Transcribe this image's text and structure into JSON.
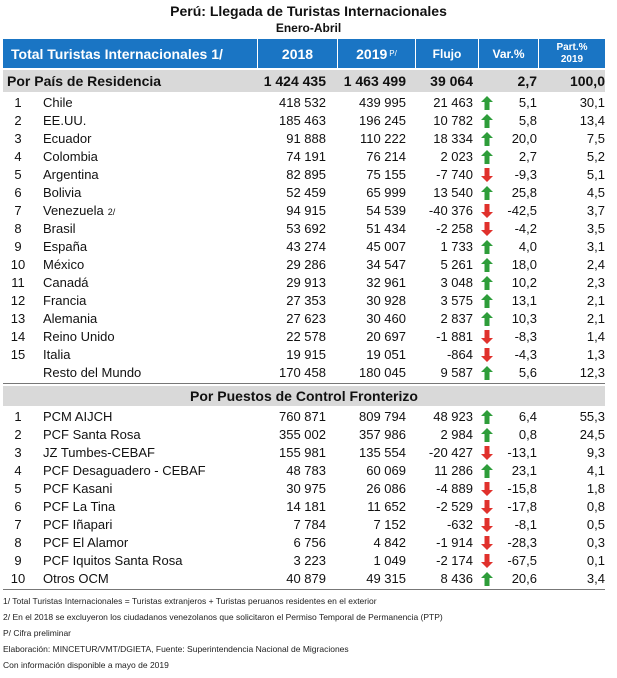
{
  "title": "Perú: Llegada de Turistas Internacionales",
  "subtitle": "Enero-Abril",
  "header": {
    "total": "Total Turistas Internacionales 1/",
    "y2018": "2018",
    "y2019": "2019",
    "y2019_note": "P/",
    "flujo": "Flujo",
    "var": "Var.%",
    "part_line1": "Part.%",
    "part_line2": "2019"
  },
  "colors": {
    "header_bg": "#1a75c4",
    "section_bg": "#d9d9d9",
    "arrow_up": "#2e9d3a",
    "arrow_down": "#e0312c"
  },
  "chart_data": {
    "type": "table",
    "title": "Perú: Llegada de Turistas Internacionales",
    "columns": [
      "Total Turistas Internacionales 1/",
      "2018",
      "2019 P/",
      "Flujo",
      "Var.%",
      "Part.% 2019"
    ],
    "sections": [
      {
        "label": "Por País de Residencia",
        "totals": {
          "y2018": "1 424 435",
          "y2019": "1 463 499",
          "flujo": "39 064",
          "var": "2,7",
          "part": "100,0"
        },
        "rows": [
          {
            "rank": "1",
            "name": "Chile",
            "note": "",
            "y2018": "418 532",
            "y2019": "439 995",
            "flujo": "21 463",
            "dir": "up",
            "var": "5,1",
            "part": "30,1"
          },
          {
            "rank": "2",
            "name": "EE.UU.",
            "note": "",
            "y2018": "185 463",
            "y2019": "196 245",
            "flujo": "10 782",
            "dir": "up",
            "var": "5,8",
            "part": "13,4"
          },
          {
            "rank": "3",
            "name": "Ecuador",
            "note": "",
            "y2018": "91 888",
            "y2019": "110 222",
            "flujo": "18 334",
            "dir": "up",
            "var": "20,0",
            "part": "7,5"
          },
          {
            "rank": "4",
            "name": "Colombia",
            "note": "",
            "y2018": "74 191",
            "y2019": "76 214",
            "flujo": "2 023",
            "dir": "up",
            "var": "2,7",
            "part": "5,2"
          },
          {
            "rank": "5",
            "name": "Argentina",
            "note": "",
            "y2018": "82 895",
            "y2019": "75 155",
            "flujo": "-7 740",
            "dir": "down",
            "var": "-9,3",
            "part": "5,1"
          },
          {
            "rank": "6",
            "name": "Bolivia",
            "note": "",
            "y2018": "52 459",
            "y2019": "65 999",
            "flujo": "13 540",
            "dir": "up",
            "var": "25,8",
            "part": "4,5"
          },
          {
            "rank": "7",
            "name": "Venezuela",
            "note": "2/",
            "y2018": "94 915",
            "y2019": "54 539",
            "flujo": "-40 376",
            "dir": "down",
            "var": "-42,5",
            "part": "3,7"
          },
          {
            "rank": "8",
            "name": "Brasil",
            "note": "",
            "y2018": "53 692",
            "y2019": "51 434",
            "flujo": "-2 258",
            "dir": "down",
            "var": "-4,2",
            "part": "3,5"
          },
          {
            "rank": "9",
            "name": "España",
            "note": "",
            "y2018": "43 274",
            "y2019": "45 007",
            "flujo": "1 733",
            "dir": "up",
            "var": "4,0",
            "part": "3,1"
          },
          {
            "rank": "10",
            "name": "México",
            "note": "",
            "y2018": "29 286",
            "y2019": "34 547",
            "flujo": "5 261",
            "dir": "up",
            "var": "18,0",
            "part": "2,4"
          },
          {
            "rank": "11",
            "name": "Canadá",
            "note": "",
            "y2018": "29 913",
            "y2019": "32 961",
            "flujo": "3 048",
            "dir": "up",
            "var": "10,2",
            "part": "2,3"
          },
          {
            "rank": "12",
            "name": "Francia",
            "note": "",
            "y2018": "27 353",
            "y2019": "30 928",
            "flujo": "3 575",
            "dir": "up",
            "var": "13,1",
            "part": "2,1"
          },
          {
            "rank": "13",
            "name": "Alemania",
            "note": "",
            "y2018": "27 623",
            "y2019": "30 460",
            "flujo": "2 837",
            "dir": "up",
            "var": "10,3",
            "part": "2,1"
          },
          {
            "rank": "14",
            "name": "Reino Unido",
            "note": "",
            "y2018": "22 578",
            "y2019": "20 697",
            "flujo": "-1 881",
            "dir": "down",
            "var": "-8,3",
            "part": "1,4"
          },
          {
            "rank": "15",
            "name": "Italia",
            "note": "",
            "y2018": "19 915",
            "y2019": "19 051",
            "flujo": "-864",
            "dir": "down",
            "var": "-4,3",
            "part": "1,3"
          },
          {
            "rank": "",
            "name": "Resto del Mundo",
            "note": "",
            "y2018": "170 458",
            "y2019": "180 045",
            "flujo": "9 587",
            "dir": "up",
            "var": "5,6",
            "part": "12,3"
          }
        ]
      },
      {
        "label": "Por Puestos de Control Fronterizo",
        "rows": [
          {
            "rank": "1",
            "name": "PCM AIJCH",
            "note": "",
            "y2018": "760 871",
            "y2019": "809 794",
            "flujo": "48 923",
            "dir": "up",
            "var": "6,4",
            "part": "55,3"
          },
          {
            "rank": "2",
            "name": "PCF Santa Rosa",
            "note": "",
            "y2018": "355 002",
            "y2019": "357 986",
            "flujo": "2 984",
            "dir": "up",
            "var": "0,8",
            "part": "24,5"
          },
          {
            "rank": "3",
            "name": "JZ Tumbes-CEBAF",
            "note": "",
            "y2018": "155 981",
            "y2019": "135 554",
            "flujo": "-20 427",
            "dir": "down",
            "var": "-13,1",
            "part": "9,3"
          },
          {
            "rank": "4",
            "name": "PCF Desaguadero - CEBAF",
            "note": "",
            "y2018": "48 783",
            "y2019": "60 069",
            "flujo": "11 286",
            "dir": "up",
            "var": "23,1",
            "part": "4,1"
          },
          {
            "rank": "5",
            "name": "PCF Kasani",
            "note": "",
            "y2018": "30 975",
            "y2019": "26 086",
            "flujo": "-4 889",
            "dir": "down",
            "var": "-15,8",
            "part": "1,8"
          },
          {
            "rank": "6",
            "name": "PCF La Tina",
            "note": "",
            "y2018": "14 181",
            "y2019": "11 652",
            "flujo": "-2 529",
            "dir": "down",
            "var": "-17,8",
            "part": "0,8"
          },
          {
            "rank": "7",
            "name": "PCF Iñapari",
            "note": "",
            "y2018": "7 784",
            "y2019": "7 152",
            "flujo": "-632",
            "dir": "down",
            "var": "-8,1",
            "part": "0,5"
          },
          {
            "rank": "8",
            "name": "PCF El Alamor",
            "note": "",
            "y2018": "6 756",
            "y2019": "4 842",
            "flujo": "-1 914",
            "dir": "down",
            "var": "-28,3",
            "part": "0,3"
          },
          {
            "rank": "9",
            "name": "PCF Iquitos Santa Rosa",
            "note": "",
            "y2018": "3 223",
            "y2019": "1 049",
            "flujo": "-2 174",
            "dir": "down",
            "var": "-67,5",
            "part": "0,1"
          },
          {
            "rank": "10",
            "name": "Otros OCM",
            "note": "",
            "y2018": "40 879",
            "y2019": "49 315",
            "flujo": "8 436",
            "dir": "up",
            "var": "20,6",
            "part": "3,4"
          }
        ]
      }
    ]
  },
  "footnotes": [
    "1/  Total Turistas Internacionales = Turistas extranjeros + Turistas peruanos residentes en el exterior",
    "2/  En el 2018 se excluyeron los ciudadanos venezolanos que solicitaron el Permiso Temporal de Permanencia (PTP)",
    "P/ Cifra preliminar",
    "Elaboración: MINCETUR/VMT/DGIETA, Fuente: Superintendencia Nacional de Migraciones",
    "Con información disponible a mayo de 2019"
  ]
}
